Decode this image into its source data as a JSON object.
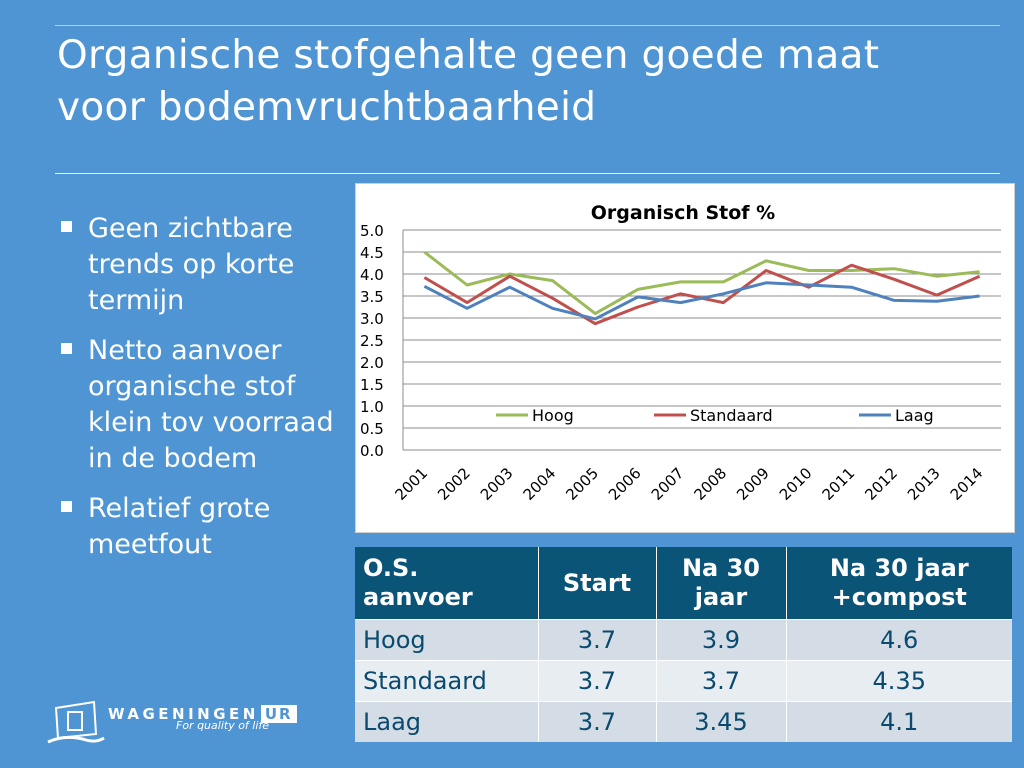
{
  "slide": {
    "title_line1": "Organische stofgehalte geen goede maat",
    "title_line2": "voor bodemvruchtbaarheid",
    "bullets": [
      "Geen zichtbare trends op korte termijn",
      "Netto aanvoer organische stof klein tov voorraad in de bodem",
      "Relatief grote meetfout"
    ]
  },
  "chart_data": {
    "type": "line",
    "title": "Organisch Stof %",
    "xlabel": "",
    "ylabel": "",
    "x": [
      "2001",
      "2002",
      "2003",
      "2004",
      "2005",
      "2006",
      "2007",
      "2008",
      "2009",
      "2010",
      "2011",
      "2012",
      "2013",
      "2014"
    ],
    "y_ticks": [
      "5.0",
      "4.5",
      "4.0",
      "3.5",
      "3.0",
      "2.5",
      "2.0",
      "1.5",
      "1.0",
      "0.5",
      "0.0"
    ],
    "ylim": [
      0,
      5
    ],
    "grid": true,
    "legend_position": "bottom (inside plot)",
    "series": [
      {
        "name": "Hoog",
        "color": "#9bbb59",
        "values": [
          4.5,
          3.75,
          4.0,
          3.85,
          3.1,
          3.65,
          3.82,
          3.82,
          4.3,
          4.08,
          4.08,
          4.12,
          3.95,
          4.05
        ]
      },
      {
        "name": "Standaard",
        "color": "#c0504d",
        "values": [
          3.92,
          3.35,
          3.95,
          3.45,
          2.87,
          3.25,
          3.55,
          3.35,
          4.08,
          3.7,
          4.2,
          3.88,
          3.52,
          3.95
        ]
      },
      {
        "name": "Laag",
        "color": "#4f81bd",
        "values": [
          3.72,
          3.22,
          3.7,
          3.22,
          2.98,
          3.48,
          3.35,
          3.55,
          3.8,
          3.75,
          3.7,
          3.4,
          3.38,
          3.5
        ]
      }
    ]
  },
  "table": {
    "headers": [
      "O.S. aanvoer",
      "Start",
      "Na 30 jaar",
      "Na 30 jaar +compost"
    ],
    "rows": [
      [
        "Hoog",
        "3.7",
        "3.9",
        "4.6"
      ],
      [
        "Standaard",
        "3.7",
        "3.7",
        "4.35"
      ],
      [
        "Laag",
        "3.7",
        "3.45",
        "4.1"
      ]
    ]
  },
  "logo": {
    "word": "WAGENINGEN",
    "ur": "UR",
    "tagline": "For quality of life"
  }
}
